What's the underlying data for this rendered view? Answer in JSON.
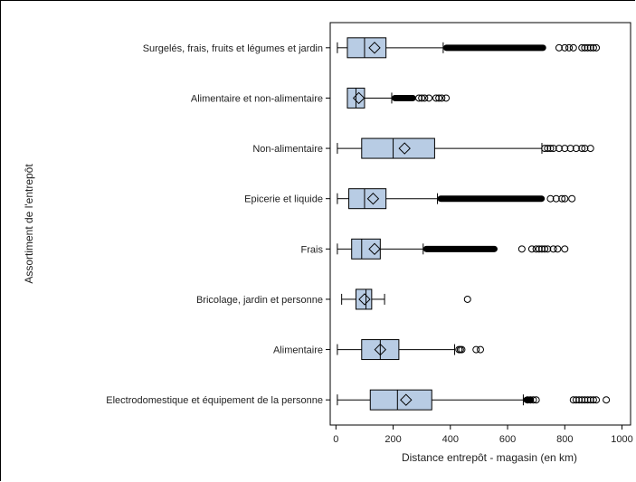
{
  "chart_data": {
    "type": "boxplot",
    "orientation": "horizontal",
    "xlabel": "Distance  entrepôt - magasin (en km)",
    "ylabel": "Assortiment de l'entrepôt",
    "xlim": [
      -20,
      1030
    ],
    "xticks": [
      0,
      200,
      400,
      600,
      800,
      1000
    ],
    "grid": false,
    "box_color": "#b8cce4",
    "categories": [
      {
        "label": "Surgelés, frais, fruits et légumes et jardin",
        "whisker_low": 5,
        "q1": 40,
        "median": 100,
        "q3": 175,
        "whisker_high": 375,
        "mean": 135,
        "outliers": [
          780,
          800,
          815,
          830,
          860,
          870,
          880,
          890,
          900,
          910
        ],
        "dense_outliers": [
          375,
          735
        ]
      },
      {
        "label": "Alimentaire et non-alimentaire",
        "whisker_low": null,
        "q1": 40,
        "median": 70,
        "q3": 100,
        "whisker_high": 195,
        "mean": 80,
        "outliers": [
          290,
          300,
          310,
          325,
          350,
          360,
          370,
          385
        ],
        "dense_outliers": [
          195,
          280
        ]
      },
      {
        "label": "Non-alimentaire",
        "whisker_low": 5,
        "q1": 90,
        "median": 200,
        "q3": 345,
        "whisker_high": 720,
        "mean": 240,
        "outliers": [
          730,
          740,
          750,
          760,
          780,
          800,
          820,
          840,
          860,
          870,
          890
        ],
        "dense_outliers": []
      },
      {
        "label": "Epicerie et liquide",
        "whisker_low": 5,
        "q1": 45,
        "median": 100,
        "q3": 175,
        "whisker_high": 355,
        "mean": 130,
        "outliers": [
          750,
          770,
          790,
          800,
          825
        ],
        "dense_outliers": [
          355,
          730
        ]
      },
      {
        "label": "Frais",
        "whisker_low": 5,
        "q1": 55,
        "median": 90,
        "q3": 155,
        "whisker_high": 305,
        "mean": 135,
        "outliers": [
          650,
          685,
          700,
          710,
          720,
          730,
          740,
          760,
          775,
          800
        ],
        "dense_outliers": [
          305,
          565
        ]
      },
      {
        "label": "Bricolage, jardin et personne",
        "whisker_low": 20,
        "q1": 70,
        "median": 105,
        "q3": 125,
        "whisker_high": 170,
        "mean": 100,
        "outliers": [
          460
        ],
        "dense_outliers": []
      },
      {
        "label": "Alimentaire",
        "whisker_low": 5,
        "q1": 90,
        "median": 155,
        "q3": 220,
        "whisker_high": 415,
        "mean": 155,
        "outliers": [
          430,
          435,
          440,
          490,
          505
        ],
        "dense_outliers": []
      },
      {
        "label": "Electrodomestique et équipement de la personne",
        "whisker_low": 5,
        "q1": 120,
        "median": 215,
        "q3": 335,
        "whisker_high": 655,
        "mean": 245,
        "outliers": [
          670,
          680,
          690,
          700,
          830,
          840,
          850,
          860,
          870,
          880,
          890,
          900,
          910,
          945
        ],
        "dense_outliers": [
          655,
          690
        ]
      }
    ]
  }
}
